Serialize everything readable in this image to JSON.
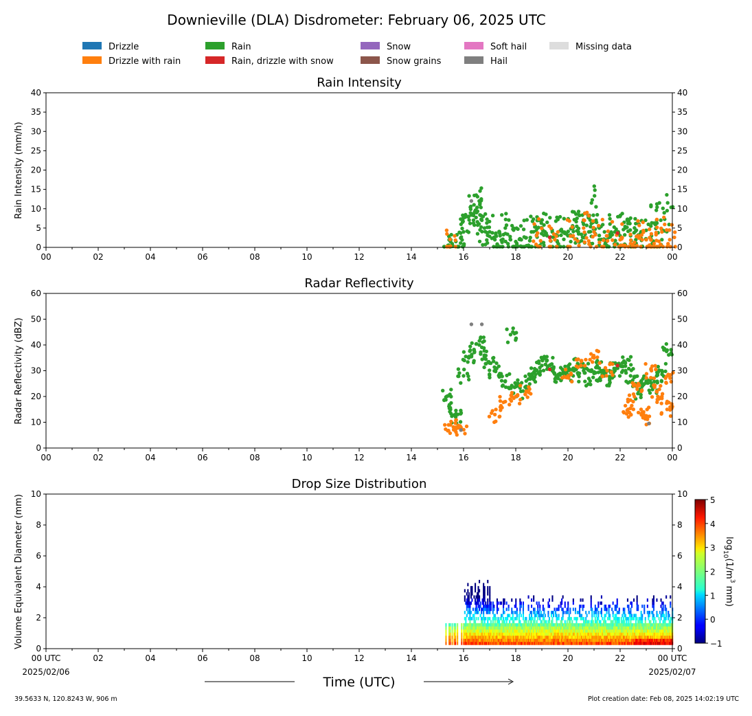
{
  "title": "Downieville (DLA) Disdrometer: February 06, 2025 UTC",
  "colors": {
    "drizzle": "#1f77b4",
    "drizzle_with_rain": "#ff7f0e",
    "rain": "#2ca02c",
    "rain_drizzle_snow": "#d62728",
    "snow": "#9467bd",
    "snow_grains": "#8c564b",
    "soft_hail": "#e377c2",
    "hail": "#7f7f7f",
    "missing": "#dddddd"
  },
  "legend": [
    {
      "label": "Drizzle",
      "color": "#1f77b4"
    },
    {
      "label": "Drizzle with rain",
      "color": "#ff7f0e"
    },
    {
      "label": "Rain",
      "color": "#2ca02c"
    },
    {
      "label": "Rain, drizzle with snow",
      "color": "#d62728"
    },
    {
      "label": "Snow",
      "color": "#9467bd"
    },
    {
      "label": "Snow grains",
      "color": "#8c564b"
    },
    {
      "label": "Soft hail",
      "color": "#e377c2"
    },
    {
      "label": "Hail",
      "color": "#7f7f7f"
    },
    {
      "label": "Missing data",
      "color": "#dddddd"
    }
  ],
  "x_tick_labels": [
    "00",
    "02",
    "04",
    "06",
    "08",
    "10",
    "12",
    "14",
    "16",
    "18",
    "20",
    "22",
    "00"
  ],
  "x_tick_labels_bottom": [
    "00 UTC",
    "02",
    "04",
    "06",
    "08",
    "10",
    "12",
    "14",
    "16",
    "18",
    "20",
    "22",
    "00 UTC"
  ],
  "date_start": "2025/02/06",
  "date_end": "2025/02/07",
  "xlabel": "Time (UTC)",
  "location": "39.5633 N, 120.8243 W, 906 m",
  "creation": "Plot creation date: Feb 08, 2025 14:02:19 UTC",
  "colorbar": {
    "label": "log10(1/m3 mm)",
    "label_base": "log",
    "label_sub": "10",
    "label_mid": "(1/m",
    "label_sup": "3",
    "label_end": " mm)",
    "ticks": [
      "5",
      "4",
      "3",
      "2",
      "1",
      "0",
      "−1"
    ],
    "range": [
      -1,
      5
    ]
  },
  "chart_data": [
    {
      "type": "scatter",
      "title": "Rain Intensity",
      "ylabel": "Rain Intensity (mm/h)",
      "xlim": [
        0,
        24
      ],
      "ylim": [
        0,
        40
      ],
      "yticks": [
        "0",
        "5",
        "10",
        "15",
        "20",
        "25",
        "30",
        "35",
        "40"
      ],
      "series": [
        {
          "name": "Rain",
          "color": "#2ca02c",
          "x": [
            15.4,
            15.6,
            15.8,
            16.0,
            16.2,
            16.4,
            16.5,
            16.6,
            16.7,
            16.8,
            17.0,
            17.2,
            17.4,
            17.6,
            17.8,
            18.0,
            18.2,
            18.4,
            18.6,
            18.8,
            19.0,
            19.2,
            19.4,
            19.6,
            19.8,
            20.0,
            20.2,
            20.4,
            20.6,
            20.8,
            20.9,
            21.0,
            21.2,
            21.4,
            21.6,
            21.8,
            22.0,
            22.2,
            22.4,
            22.6,
            22.8,
            23.0,
            23.2,
            23.4,
            23.6,
            23.8
          ],
          "y": [
            0.5,
            0.3,
            0.2,
            4,
            8,
            11,
            9,
            12,
            7,
            5,
            4,
            2,
            3,
            5,
            2,
            1.5,
            2,
            2.5,
            4,
            3,
            5,
            3,
            4,
            3,
            4,
            3,
            5,
            4,
            6,
            4,
            11.5,
            4,
            5,
            4,
            3,
            4,
            3,
            5,
            3,
            2,
            4,
            2,
            3,
            7,
            2,
            9.5
          ]
        },
        {
          "name": "Drizzle with rain",
          "color": "#ff7f0e",
          "x": [
            15.5,
            18.8,
            19.5,
            20.2,
            20.6,
            21.0,
            21.5,
            22.0,
            22.4,
            22.7,
            23.0,
            23.3,
            23.6,
            23.9
          ],
          "y": [
            0.3,
            3,
            2,
            3,
            5,
            4,
            3,
            2,
            1,
            3,
            2,
            1,
            4,
            2
          ]
        },
        {
          "name": "Rain, drizzle with snow",
          "color": "#d62728",
          "x": [
            19.3,
            21.9
          ],
          "y": [
            2.6,
            3.7
          ]
        },
        {
          "name": "Hail",
          "color": "#7f7f7f",
          "x": [
            16.3
          ],
          "y": [
            12
          ]
        }
      ]
    },
    {
      "type": "scatter",
      "title": "Radar Reflectivity",
      "ylabel": "Radar Reflectivity (dBZ)",
      "xlim": [
        0,
        24
      ],
      "ylim": [
        0,
        60
      ],
      "yticks": [
        "0",
        "10",
        "20",
        "30",
        "40",
        "50",
        "60"
      ],
      "series": [
        {
          "name": "Rain",
          "color": "#2ca02c",
          "x": [
            15.35,
            15.5,
            15.7,
            16.0,
            16.2,
            16.4,
            16.6,
            16.8,
            17.0,
            17.2,
            17.4,
            17.6,
            17.8,
            18.0,
            18.2,
            18.4,
            18.6,
            18.8,
            19.0,
            19.2,
            19.4,
            19.6,
            19.8,
            20.0,
            20.2,
            20.4,
            20.6,
            20.8,
            21.0,
            21.2,
            21.4,
            21.6,
            21.8,
            22.0,
            22.2,
            22.4,
            22.6,
            22.8,
            23.0,
            23.2,
            23.4,
            23.6,
            23.8
          ],
          "y": [
            20,
            15,
            12,
            28,
            35,
            38,
            40,
            36,
            33,
            30,
            28,
            26,
            44,
            24,
            22,
            26,
            28,
            30,
            32,
            34,
            30,
            28,
            29,
            30,
            28,
            32,
            30,
            27,
            29,
            31,
            28,
            27,
            30,
            32,
            33,
            28,
            25,
            22,
            26,
            24,
            28,
            30,
            38
          ]
        },
        {
          "name": "Drizzle with rain",
          "color": "#ff7f0e",
          "x": [
            15.5,
            15.7,
            15.9,
            17.2,
            17.6,
            18.0,
            18.4,
            20.0,
            20.5,
            21.0,
            21.5,
            22.3,
            22.5,
            22.7,
            22.9,
            23.0,
            23.2,
            23.4,
            23.6,
            23.8,
            23.9
          ],
          "y": [
            9,
            8,
            7,
            13,
            18,
            20,
            22,
            28,
            32,
            35,
            30,
            15,
            18,
            25,
            14,
            12,
            30,
            22,
            20,
            15,
            28
          ]
        },
        {
          "name": "Rain, drizzle with snow",
          "color": "#d62728",
          "x": [
            19.3,
            21.9
          ],
          "y": [
            30.5,
            32
          ]
        },
        {
          "name": "Hail",
          "color": "#7f7f7f",
          "x": [
            16.3,
            16.7,
            23.1,
            15.9
          ],
          "y": [
            48,
            48,
            9.5,
            7
          ]
        }
      ]
    },
    {
      "type": "heatmap",
      "title": "Drop Size Distribution",
      "ylabel": "Volume Equivalent Diameter (mm)",
      "xlim": [
        0,
        24
      ],
      "ylim": [
        0,
        10
      ],
      "yticks": [
        "0",
        "2",
        "4",
        "6",
        "8",
        "10"
      ],
      "active_hours": [
        15.3,
        24
      ],
      "max_diameter_mm": [
        1.5,
        4.4
      ],
      "value_range": [
        -1,
        5
      ]
    }
  ]
}
